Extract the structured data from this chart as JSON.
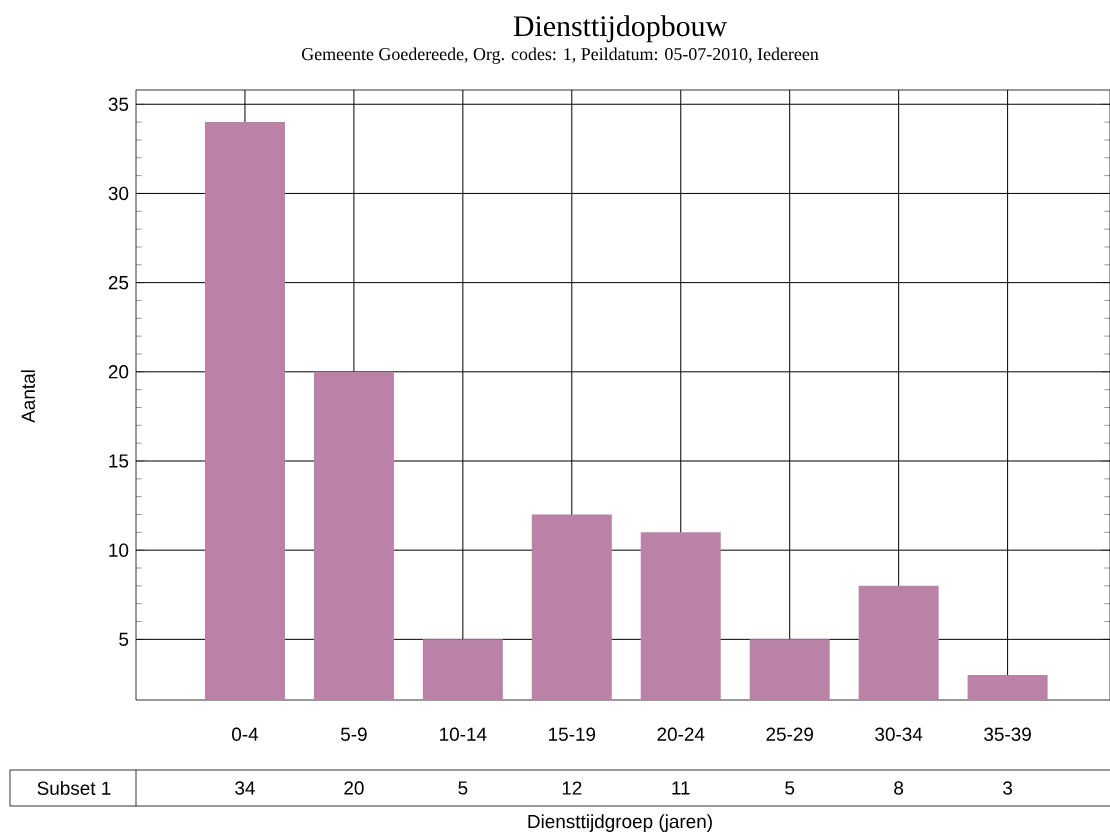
{
  "chart_data": {
    "type": "bar",
    "title": "Diensttijdopbouw",
    "subtitle": "Gemeente Goedereede, Org. codes: 1, Peildatum: 05-07-2010, Iedereen",
    "xlabel": "Diensttijdgroep (jaren)",
    "ylabel": "Aantal",
    "categories": [
      "0-4",
      "5-9",
      "10-14",
      "15-19",
      "20-24",
      "25-29",
      "30-34",
      "35-39"
    ],
    "series": [
      {
        "name": "Subset 1",
        "color": "#b982a6",
        "values": [
          34,
          20,
          5,
          12,
          11,
          5,
          8,
          3
        ]
      }
    ],
    "ylim": [
      1.6,
      35.8
    ],
    "yticks": [
      5,
      10,
      15,
      20,
      25,
      30,
      35
    ],
    "grid": true,
    "data_labels": true
  }
}
